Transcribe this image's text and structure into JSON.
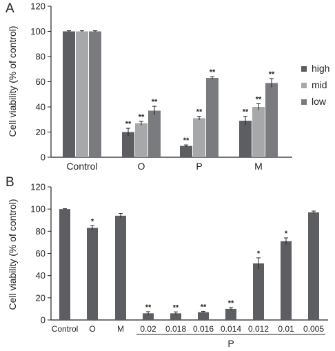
{
  "panels": [
    {
      "label": "A",
      "ylabel": "Cell viability (% of control)",
      "legend": [
        {
          "name": "high",
          "color": "#5d5e61"
        },
        {
          "name": "mid",
          "color": "#a7a8aa"
        },
        {
          "name": "low",
          "color": "#7a7b7e"
        }
      ]
    },
    {
      "label": "B",
      "ylabel": "Cell viability (% of control)",
      "group_label": "P"
    }
  ],
  "chart_data": [
    {
      "type": "bar",
      "title": "",
      "xlabel": "",
      "ylabel": "Cell viability (% of control)",
      "ylim": [
        0,
        120
      ],
      "yticks": [
        0,
        20,
        40,
        60,
        80,
        100,
        120
      ],
      "categories": [
        "Control",
        "O",
        "P",
        "M"
      ],
      "legend_position": "right",
      "grid": false,
      "series": [
        {
          "name": "high",
          "color": "#5d5e61",
          "values": [
            100,
            20,
            9,
            29
          ],
          "errors": [
            0.5,
            3,
            0.8,
            3.5
          ],
          "annotations": [
            "",
            "**",
            "**",
            "**"
          ]
        },
        {
          "name": "mid",
          "color": "#a7a8aa",
          "values": [
            100,
            27,
            31,
            40
          ],
          "errors": [
            0.5,
            1.5,
            1.5,
            2.5
          ],
          "annotations": [
            "",
            "**",
            "**",
            "**"
          ]
        },
        {
          "name": "low",
          "color": "#7a7b7e",
          "values": [
            100,
            37,
            63,
            59
          ],
          "errors": [
            0.5,
            3.5,
            1,
            3.5
          ],
          "annotations": [
            "",
            "**",
            "**",
            "**"
          ]
        }
      ]
    },
    {
      "type": "bar",
      "title": "",
      "xlabel": "",
      "ylabel": "Cell viability (% of control)",
      "ylim": [
        0,
        120
      ],
      "yticks": [
        0,
        20,
        40,
        60,
        80,
        100,
        120
      ],
      "categories": [
        "Control",
        "O",
        "M",
        "0.02",
        "0.018",
        "0.016",
        "0.014",
        "0.012",
        "0.01",
        "0.005"
      ],
      "group": {
        "label": "P",
        "categories": [
          "0.02",
          "0.018",
          "0.016",
          "0.014",
          "0.012",
          "0.01",
          "0.005"
        ]
      },
      "grid": false,
      "series": [
        {
          "color": "#5d5e61",
          "values": [
            100,
            83,
            94,
            6,
            6,
            7,
            10,
            51,
            71,
            97
          ],
          "errors": [
            0.3,
            2,
            2,
            1.5,
            1.3,
            0.8,
            1.2,
            5,
            3,
            1.2
          ],
          "annotations": [
            "",
            "*",
            "",
            "**",
            "**",
            "**",
            "**",
            "*",
            "*",
            ""
          ]
        }
      ]
    }
  ]
}
